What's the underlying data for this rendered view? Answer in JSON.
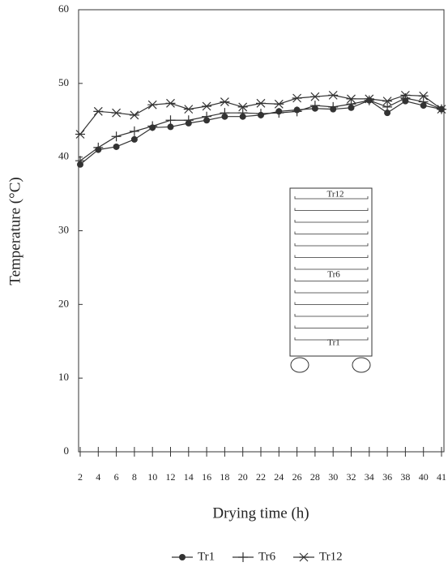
{
  "chart_data": {
    "type": "line",
    "x_label": "Drying time (h)",
    "y_label": "Temperature (°C)",
    "categories": [
      "2",
      "4",
      "6",
      "8",
      "10",
      "12",
      "14",
      "16",
      "18",
      "20",
      "22",
      "24",
      "26",
      "28",
      "30",
      "32",
      "34",
      "36",
      "38",
      "40",
      "41"
    ],
    "ylim": [
      0,
      60
    ],
    "yticks": [
      0,
      10,
      20,
      30,
      40,
      50,
      60
    ],
    "grid": false,
    "series": [
      {
        "name": "Tr1",
        "color": "#333333",
        "marker": "circle",
        "values": [
          39,
          41,
          41.4,
          42.4,
          44,
          44.1,
          44.6,
          45,
          45.5,
          45.5,
          45.7,
          46.2,
          46.4,
          46.6,
          46.5,
          46.7,
          47.7,
          46,
          47.6,
          47,
          46.5
        ]
      },
      {
        "name": "Tr6",
        "color": "#333333",
        "marker": "plus",
        "values": [
          39.5,
          41.3,
          42.8,
          43.5,
          44.2,
          45,
          45,
          45.5,
          46,
          46,
          45.9,
          46,
          46.2,
          47,
          46.8,
          47.2,
          47.7,
          46.8,
          48,
          47.5,
          46.5
        ]
      },
      {
        "name": "Tr12",
        "color": "#333333",
        "marker": "star",
        "values": [
          43.1,
          46.2,
          46,
          45.7,
          47.1,
          47.3,
          46.5,
          46.9,
          47.5,
          46.8,
          47.3,
          47.2,
          48,
          48.2,
          48.4,
          47.9,
          47.9,
          47.6,
          48.4,
          48.3,
          46.5
        ]
      }
    ],
    "annotations": [
      "Tr12",
      "Tr6",
      "Tr1"
    ]
  }
}
